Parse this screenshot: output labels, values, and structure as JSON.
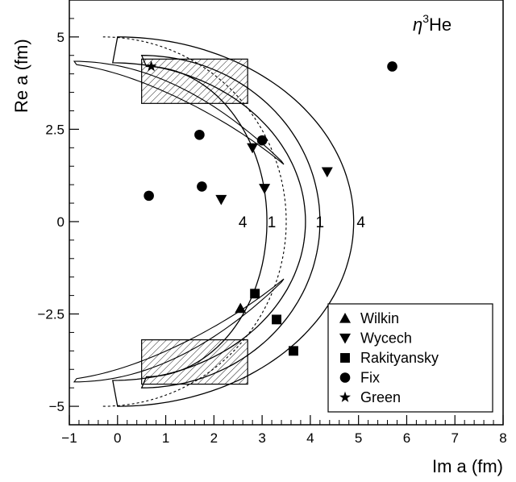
{
  "chart_data": {
    "type": "scatter",
    "title": "η³He",
    "title_parts": {
      "symbol": "η",
      "superscript": "3",
      "element": "He"
    },
    "xlabel": "Im a  (fm)",
    "ylabel": "Re a  (fm)",
    "xlim": [
      -1,
      8
    ],
    "ylim": [
      -5.5,
      6.0
    ],
    "x_ticks": [
      -1,
      0,
      1,
      2,
      3,
      4,
      5,
      6,
      7,
      8
    ],
    "x_tick_labels": [
      "−1",
      "0",
      "1",
      "2",
      "3",
      "4",
      "5",
      "6",
      "7",
      "8"
    ],
    "y_ticks": [
      -5,
      -2.5,
      0,
      2.5,
      5
    ],
    "y_tick_labels": [
      "−5",
      "−2.5",
      "0",
      "2.5",
      "5"
    ],
    "grid": false,
    "legend_position": "bottom-right",
    "series": [
      {
        "name": "Wilkin",
        "marker": "triangle-up",
        "points": [
          [
            2.55,
            -2.35
          ]
        ]
      },
      {
        "name": "Wycech",
        "marker": "triangle-down",
        "points": [
          [
            2.15,
            0.6
          ],
          [
            2.8,
            2.0
          ],
          [
            3.05,
            0.9
          ],
          [
            4.35,
            1.35
          ]
        ]
      },
      {
        "name": "Rakityansky",
        "marker": "square",
        "points": [
          [
            2.85,
            -1.95
          ],
          [
            3.3,
            -2.65
          ],
          [
            3.65,
            -3.5
          ]
        ]
      },
      {
        "name": "Fix",
        "marker": "circle",
        "points": [
          [
            0.65,
            0.7
          ],
          [
            1.7,
            2.35
          ],
          [
            1.75,
            0.95
          ],
          [
            3.0,
            2.2
          ],
          [
            5.7,
            4.2
          ]
        ]
      },
      {
        "name": "Green",
        "marker": "star",
        "points": [
          [
            0.7,
            4.2
          ]
        ]
      }
    ],
    "shaded_boxes": [
      {
        "x": [
          0.5,
          2.7
        ],
        "y": [
          3.2,
          4.4
        ]
      },
      {
        "x": [
          0.5,
          2.7
        ],
        "y": [
          -4.4,
          -3.2
        ]
      }
    ],
    "contour_labels": [
      {
        "text": "4",
        "x": 2.6,
        "y": 0
      },
      {
        "text": "1",
        "x": 3.2,
        "y": 0
      },
      {
        "text": "1",
        "x": 4.2,
        "y": 0
      },
      {
        "text": "4",
        "x": 5.05,
        "y": 0
      }
    ]
  }
}
